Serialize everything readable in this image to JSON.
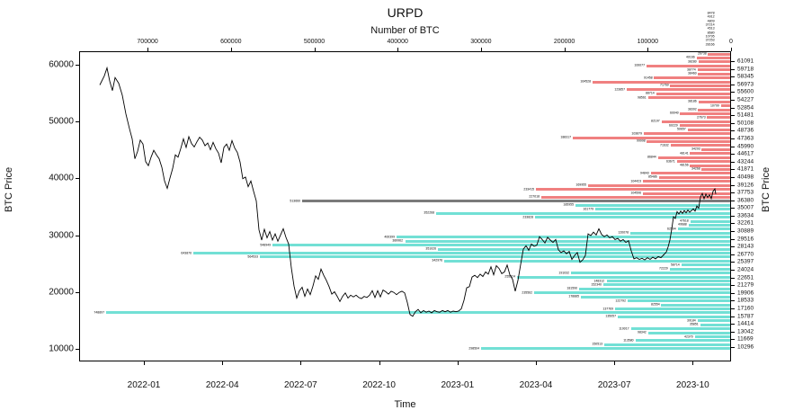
{
  "title": "URPD",
  "axes": {
    "top": {
      "label": "Number of BTC",
      "ticks": [
        700000,
        600000,
        500000,
        400000,
        300000,
        200000,
        100000,
        0
      ]
    },
    "bottom": {
      "label": "Time",
      "ticks": [
        "2022-01",
        "2022-04",
        "2022-07",
        "2022-10",
        "2023-01",
        "2023-04",
        "2023-07",
        "2023-10"
      ]
    },
    "left": {
      "label": "BTC Price",
      "ticks": [
        10000,
        20000,
        30000,
        40000,
        50000,
        60000
      ]
    },
    "right": {
      "label": "BTC Price",
      "ticks": [
        61091,
        59718,
        58345,
        56973,
        55600,
        54227,
        52854,
        51481,
        50108,
        48736,
        47363,
        45990,
        44617,
        43244,
        41871,
        40498,
        39126,
        37753,
        36380,
        35007,
        33634,
        32261,
        30889,
        29516,
        28143,
        26770,
        25397,
        24024,
        22651,
        21279,
        19906,
        18533,
        17160,
        15787,
        14414,
        13042,
        11669,
        10296
      ]
    }
  },
  "colors": {
    "above": "#f08080",
    "below": "#72e0d5",
    "current": "#7a7a7a",
    "line": "#000000"
  },
  "overflow_labels": [
    8478,
    4912,
    4809,
    37214,
    4513,
    8680,
    10795,
    37253,
    28166
  ],
  "chart_data": {
    "type": "bar",
    "overlay": "line",
    "orientation": "horizontal",
    "title": "URPD",
    "x_top_label": "Number of BTC",
    "x_top_range": [
      0,
      782000
    ],
    "y_range_price": [
      7800,
      62500
    ],
    "row_price_top_est": 63150,
    "row_price_step_est": 686.5,
    "legend": "none",
    "grid": false,
    "bars": [
      {
        "btc": 26738,
        "zone": "above"
      },
      {
        "btc": 40166,
        "zone": "above"
      },
      {
        "btc": 38280,
        "zone": "above"
      },
      {
        "btc": 100077,
        "zone": "above"
      },
      {
        "btc": 38774,
        "zone": "above"
      },
      {
        "btc": 38460,
        "zone": "above"
      },
      {
        "btc": 91458,
        "zone": "above"
      },
      {
        "btc": 164528,
        "zone": "above"
      },
      {
        "btc": 71769,
        "zone": "above"
      },
      {
        "btc": 123857,
        "zone": "above"
      },
      {
        "btc": 88714,
        "zone": "above"
      },
      {
        "btc": 98561,
        "zone": "above"
      },
      {
        "btc": 38186,
        "zone": "above"
      },
      {
        "btc": 10799,
        "zone": "above"
      },
      {
        "btc": 38392,
        "zone": "above"
      },
      {
        "btc": 60040,
        "zone": "above"
      },
      {
        "btc": 27673,
        "zone": "above"
      },
      {
        "btc": 82197,
        "zone": "above"
      },
      {
        "btc": 60229,
        "zone": "above"
      },
      {
        "btc": 50657,
        "zone": "above"
      },
      {
        "btc": 103879,
        "zone": "above"
      },
      {
        "btc": 188317,
        "zone": "above"
      },
      {
        "btc": 99998,
        "zone": "above"
      },
      {
        "btc": 71632,
        "zone": "above"
      },
      {
        "btc": 34293,
        "zone": "above"
      },
      {
        "btc": 48141,
        "zone": "above"
      },
      {
        "btc": 86844,
        "zone": "above"
      },
      {
        "btc": 63671,
        "zone": "above"
      },
      {
        "btc": 48156,
        "zone": "above"
      },
      {
        "btc": 34268,
        "zone": "above"
      },
      {
        "btc": 94843,
        "zone": "above"
      },
      {
        "btc": 85486,
        "zone": "above"
      },
      {
        "btc": 104423,
        "zone": "above"
      },
      {
        "btc": 169955,
        "zone": "above"
      },
      {
        "btc": 233415,
        "zone": "above"
      },
      {
        "btc": 104596,
        "zone": "above"
      },
      {
        "btc": 227018,
        "zone": "above"
      },
      {
        "btc": 513660,
        "zone": "current"
      },
      {
        "btc": 185955,
        "zone": "below"
      },
      {
        "btc": 161779,
        "zone": "below"
      },
      {
        "btc": 352268,
        "zone": "below"
      },
      {
        "btc": 233828,
        "zone": "below"
      },
      {
        "btc": 47618,
        "zone": "below"
      },
      {
        "btc": 49688,
        "zone": "below"
      },
      {
        "btc": 62594,
        "zone": "below"
      },
      {
        "btc": 120078,
        "zone": "below"
      },
      {
        "btc": 400399,
        "zone": "below"
      },
      {
        "btc": 389962,
        "zone": "below"
      },
      {
        "btc": 548949,
        "zone": "below"
      },
      {
        "btc": 351026,
        "zone": "below"
      },
      {
        "btc": 643870,
        "zone": "below"
      },
      {
        "btc": 564533,
        "zone": "below"
      },
      {
        "btc": 342976,
        "zone": "below"
      },
      {
        "btc": 58714,
        "zone": "below"
      },
      {
        "btc": 72229,
        "zone": "below"
      },
      {
        "btc": 191032,
        "zone": "below"
      },
      {
        "btc": 255324,
        "zone": "below"
      },
      {
        "btc": 148312,
        "zone": "below"
      },
      {
        "btc": 152340,
        "zone": "below"
      },
      {
        "btc": 181590,
        "zone": "below"
      },
      {
        "btc": 235562,
        "zone": "below"
      },
      {
        "btc": 178885,
        "zone": "below"
      },
      {
        "btc": 122792,
        "zone": "below"
      },
      {
        "btc": 82554,
        "zone": "below"
      },
      {
        "btc": 137769,
        "zone": "below"
      },
      {
        "btc": 748897,
        "zone": "below"
      },
      {
        "btc": 135057,
        "zone": "below"
      },
      {
        "btc": 39184,
        "zone": "below"
      },
      {
        "btc": 35851,
        "zone": "below"
      },
      {
        "btc": 119017,
        "zone": "below"
      },
      {
        "btc": 98342,
        "zone": "below"
      },
      {
        "btc": 42370,
        "zone": "below"
      },
      {
        "btc": 113580,
        "zone": "below"
      },
      {
        "btc": 150513,
        "zone": "below"
      },
      {
        "btc": 298504,
        "zone": "below"
      }
    ],
    "price_line": [
      [
        110,
        56600
      ],
      [
        115,
        58200
      ],
      [
        118,
        59600
      ],
      [
        121,
        57300
      ],
      [
        124,
        55600
      ],
      [
        127,
        57900
      ],
      [
        131,
        56900
      ],
      [
        135,
        54800
      ],
      [
        139,
        51500
      ],
      [
        143,
        48900
      ],
      [
        146,
        47100
      ],
      [
        149,
        43600
      ],
      [
        152,
        44900
      ],
      [
        155,
        46900
      ],
      [
        158,
        46200
      ],
      [
        161,
        43100
      ],
      [
        164,
        42400
      ],
      [
        167,
        43900
      ],
      [
        170,
        45100
      ],
      [
        173,
        44300
      ],
      [
        176,
        43600
      ],
      [
        179,
        42100
      ],
      [
        182,
        39700
      ],
      [
        185,
        38400
      ],
      [
        188,
        40200
      ],
      [
        191,
        41900
      ],
      [
        194,
        44300
      ],
      [
        197,
        43900
      ],
      [
        200,
        45400
      ],
      [
        203,
        47100
      ],
      [
        206,
        45600
      ],
      [
        209,
        47500
      ],
      [
        212,
        46300
      ],
      [
        215,
        45700
      ],
      [
        218,
        46600
      ],
      [
        221,
        47400
      ],
      [
        224,
        46900
      ],
      [
        227,
        45900
      ],
      [
        230,
        46400
      ],
      [
        233,
        45200
      ],
      [
        236,
        46500
      ],
      [
        239,
        45400
      ],
      [
        242,
        44600
      ],
      [
        245,
        42900
      ],
      [
        248,
        45600
      ],
      [
        251,
        46200
      ],
      [
        254,
        45100
      ],
      [
        257,
        46800
      ],
      [
        260,
        45500
      ],
      [
        263,
        44700
      ],
      [
        266,
        43000
      ],
      [
        269,
        40100
      ],
      [
        272,
        40400
      ],
      [
        275,
        38700
      ],
      [
        278,
        39700
      ],
      [
        281,
        37900
      ],
      [
        284,
        36200
      ],
      [
        287,
        31100
      ],
      [
        290,
        29300
      ],
      [
        293,
        31200
      ],
      [
        296,
        29700
      ],
      [
        299,
        30800
      ],
      [
        302,
        29300
      ],
      [
        305,
        30400
      ],
      [
        308,
        29100
      ],
      [
        311,
        30200
      ],
      [
        314,
        31300
      ],
      [
        317,
        29800
      ],
      [
        320,
        28600
      ],
      [
        323,
        24400
      ],
      [
        326,
        21200
      ],
      [
        329,
        19100
      ],
      [
        332,
        20400
      ],
      [
        335,
        21000
      ],
      [
        338,
        19400
      ],
      [
        341,
        20700
      ],
      [
        344,
        19700
      ],
      [
        347,
        21200
      ],
      [
        350,
        23000
      ],
      [
        353,
        22400
      ],
      [
        356,
        24200
      ],
      [
        359,
        23100
      ],
      [
        362,
        22200
      ],
      [
        365,
        21100
      ],
      [
        368,
        19800
      ],
      [
        371,
        20200
      ],
      [
        374,
        19400
      ],
      [
        377,
        18500
      ],
      [
        380,
        19400
      ],
      [
        383,
        20000
      ],
      [
        386,
        19100
      ],
      [
        389,
        19600
      ],
      [
        392,
        19300
      ],
      [
        395,
        19600
      ],
      [
        398,
        19200
      ],
      [
        401,
        19000
      ],
      [
        404,
        19400
      ],
      [
        407,
        19200
      ],
      [
        410,
        19600
      ],
      [
        413,
        20400
      ],
      [
        416,
        19200
      ],
      [
        419,
        20400
      ],
      [
        422,
        19300
      ],
      [
        425,
        20500
      ],
      [
        428,
        20200
      ],
      [
        431,
        19800
      ],
      [
        434,
        20300
      ],
      [
        437,
        20100
      ],
      [
        440,
        19700
      ],
      [
        443,
        20100
      ],
      [
        446,
        20300
      ],
      [
        449,
        20000
      ],
      [
        452,
        18300
      ],
      [
        455,
        16200
      ],
      [
        458,
        15900
      ],
      [
        461,
        16700
      ],
      [
        464,
        17100
      ],
      [
        467,
        16500
      ],
      [
        470,
        16900
      ],
      [
        473,
        16600
      ],
      [
        476,
        16800
      ],
      [
        479,
        16500
      ],
      [
        482,
        16900
      ],
      [
        485,
        16700
      ],
      [
        488,
        16600
      ],
      [
        491,
        16900
      ],
      [
        494,
        16700
      ],
      [
        497,
        16900
      ],
      [
        500,
        16600
      ],
      [
        503,
        16800
      ],
      [
        506,
        16700
      ],
      [
        509,
        16800
      ],
      [
        512,
        17200
      ],
      [
        515,
        18700
      ],
      [
        518,
        20900
      ],
      [
        521,
        21100
      ],
      [
        524,
        22800
      ],
      [
        527,
        23100
      ],
      [
        530,
        22700
      ],
      [
        533,
        23300
      ],
      [
        536,
        22900
      ],
      [
        539,
        23700
      ],
      [
        542,
        23300
      ],
      [
        545,
        24600
      ],
      [
        548,
        23200
      ],
      [
        551,
        24800
      ],
      [
        554,
        24300
      ],
      [
        557,
        23400
      ],
      [
        560,
        23700
      ],
      [
        563,
        24900
      ],
      [
        566,
        23200
      ],
      [
        569,
        22400
      ],
      [
        572,
        20300
      ],
      [
        575,
        22200
      ],
      [
        578,
        25000
      ],
      [
        581,
        27700
      ],
      [
        584,
        28300
      ],
      [
        587,
        27500
      ],
      [
        590,
        28600
      ],
      [
        593,
        28200
      ],
      [
        596,
        28400
      ],
      [
        599,
        29900
      ],
      [
        602,
        29400
      ],
      [
        605,
        28800
      ],
      [
        608,
        29800
      ],
      [
        611,
        29300
      ],
      [
        614,
        28900
      ],
      [
        617,
        29400
      ],
      [
        620,
        27600
      ],
      [
        623,
        27100
      ],
      [
        626,
        27400
      ],
      [
        629,
        26900
      ],
      [
        632,
        27300
      ],
      [
        635,
        25900
      ],
      [
        638,
        26600
      ],
      [
        641,
        27100
      ],
      [
        644,
        25400
      ],
      [
        647,
        25800
      ],
      [
        650,
        26600
      ],
      [
        653,
        30400
      ],
      [
        656,
        30100
      ],
      [
        659,
        30700
      ],
      [
        662,
        30200
      ],
      [
        665,
        31300
      ],
      [
        668,
        30300
      ],
      [
        671,
        29900
      ],
      [
        674,
        30200
      ],
      [
        677,
        29700
      ],
      [
        680,
        29900
      ],
      [
        683,
        29400
      ],
      [
        686,
        29600
      ],
      [
        689,
        29100
      ],
      [
        692,
        29400
      ],
      [
        695,
        28900
      ],
      [
        698,
        29200
      ],
      [
        701,
        27400
      ],
      [
        704,
        26000
      ],
      [
        707,
        26200
      ],
      [
        710,
        25900
      ],
      [
        713,
        26100
      ],
      [
        716,
        25800
      ],
      [
        719,
        26200
      ],
      [
        722,
        25900
      ],
      [
        725,
        26300
      ],
      [
        728,
        26000
      ],
      [
        731,
        26400
      ],
      [
        734,
        26200
      ],
      [
        737,
        26700
      ],
      [
        740,
        27200
      ],
      [
        742,
        28100
      ],
      [
        744,
        29300
      ],
      [
        746,
        31200
      ],
      [
        748,
        33400
      ],
      [
        750,
        33100
      ],
      [
        752,
        34300
      ],
      [
        754,
        33900
      ],
      [
        756,
        34400
      ],
      [
        758,
        34000
      ],
      [
        760,
        34500
      ],
      [
        762,
        34100
      ],
      [
        764,
        34600
      ],
      [
        766,
        34200
      ],
      [
        768,
        34500
      ],
      [
        770,
        34800
      ],
      [
        772,
        34400
      ],
      [
        774,
        35300
      ],
      [
        776,
        34900
      ],
      [
        778,
        36900
      ],
      [
        780,
        37500
      ],
      [
        782,
        36600
      ],
      [
        784,
        37400
      ],
      [
        786,
        36800
      ],
      [
        788,
        37300
      ],
      [
        790,
        36600
      ],
      [
        792,
        37900
      ],
      [
        794,
        38300
      ],
      [
        795,
        37400
      ]
    ]
  }
}
